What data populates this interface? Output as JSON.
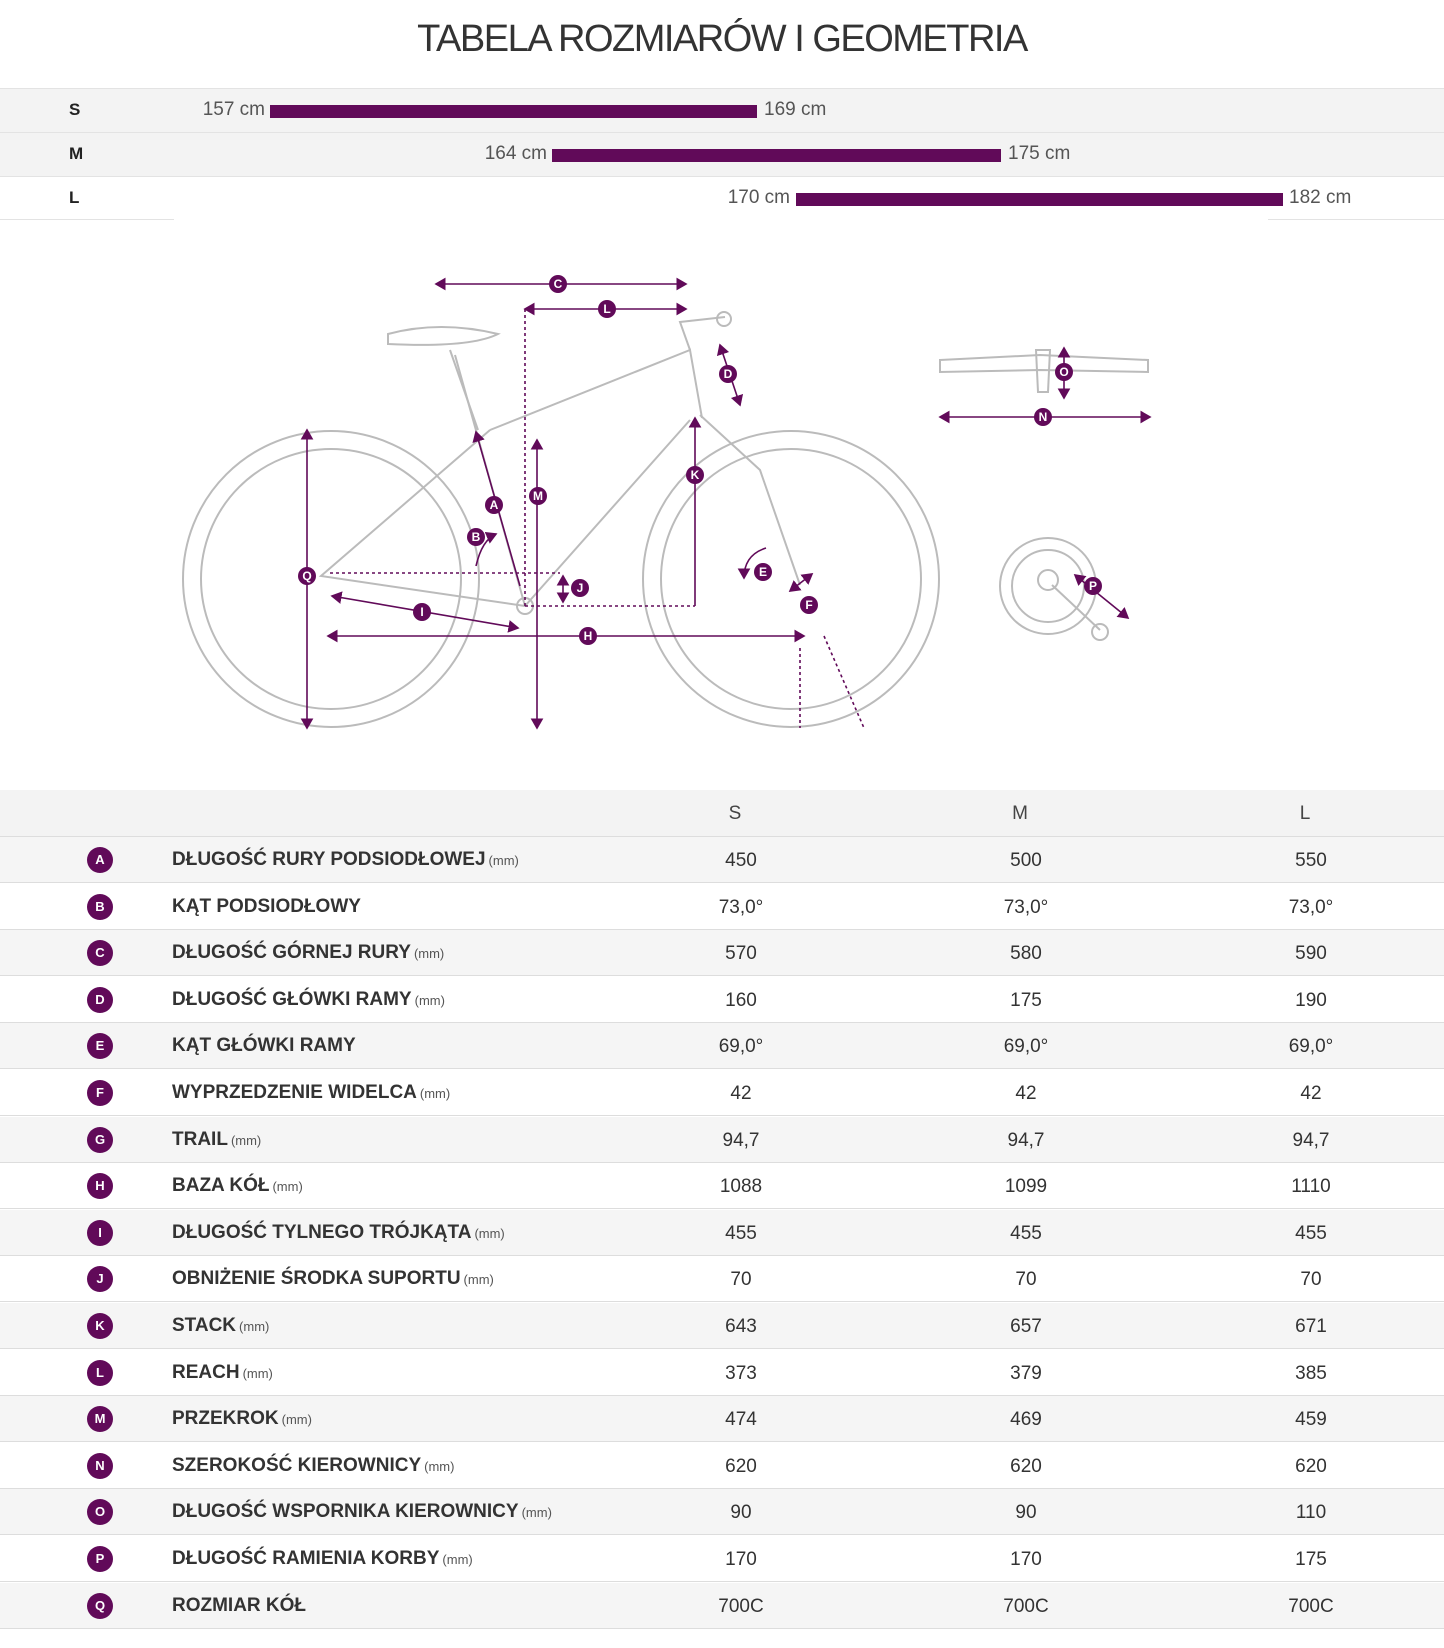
{
  "page": {
    "title": "TABELA ROZMIARÓW I GEOMETRIA"
  },
  "colors": {
    "accent": "#610a59",
    "row_alt": "#f3f3f3"
  },
  "size_chart": {
    "rows": [
      {
        "size": "S",
        "min_label": "157 cm",
        "max_label": "169 cm",
        "min_cm": 157,
        "max_cm": 169
      },
      {
        "size": "M",
        "min_label": "164 cm",
        "max_label": "175 cm",
        "min_cm": 164,
        "max_cm": 175
      },
      {
        "size": "L",
        "min_label": "170 cm",
        "max_label": "182 cm",
        "min_cm": 170,
        "max_cm": 182
      }
    ]
  },
  "diagram": {
    "labels": [
      "A",
      "B",
      "C",
      "D",
      "E",
      "F",
      "H",
      "I",
      "J",
      "K",
      "L",
      "M",
      "N",
      "O",
      "P",
      "Q"
    ]
  },
  "geometry": {
    "columns": [
      "S",
      "M",
      "L"
    ],
    "rows": [
      {
        "letter": "A",
        "name": "DŁUGOŚĆ RURY PODSIODŁOWEJ",
        "unit": "(mm)",
        "values": [
          "450",
          "500",
          "550"
        ]
      },
      {
        "letter": "B",
        "name": "KĄT PODSIODŁOWY",
        "unit": "",
        "values": [
          "73,0°",
          "73,0°",
          "73,0°"
        ]
      },
      {
        "letter": "C",
        "name": "DŁUGOŚĆ GÓRNEJ RURY",
        "unit": "(mm)",
        "values": [
          "570",
          "580",
          "590"
        ]
      },
      {
        "letter": "D",
        "name": "DŁUGOŚĆ GŁÓWKI RAMY",
        "unit": "(mm)",
        "values": [
          "160",
          "175",
          "190"
        ]
      },
      {
        "letter": "E",
        "name": "KĄT GŁÓWKI RAMY",
        "unit": "",
        "values": [
          "69,0°",
          "69,0°",
          "69,0°"
        ]
      },
      {
        "letter": "F",
        "name": "WYPRZEDZENIE WIDELCA",
        "unit": "(mm)",
        "values": [
          "42",
          "42",
          "42"
        ]
      },
      {
        "letter": "G",
        "name": "TRAIL",
        "unit": "(mm)",
        "values": [
          "94,7",
          "94,7",
          "94,7"
        ]
      },
      {
        "letter": "H",
        "name": "BAZA KÓŁ",
        "unit": "(mm)",
        "values": [
          "1088",
          "1099",
          "1110"
        ]
      },
      {
        "letter": "I",
        "name": "DŁUGOŚĆ TYLNEGO TRÓJKĄTA",
        "unit": "(mm)",
        "values": [
          "455",
          "455",
          "455"
        ]
      },
      {
        "letter": "J",
        "name": "OBNIŻENIE ŚRODKA SUPORTU",
        "unit": "(mm)",
        "values": [
          "70",
          "70",
          "70"
        ]
      },
      {
        "letter": "K",
        "name": "STACK",
        "unit": "(mm)",
        "values": [
          "643",
          "657",
          "671"
        ]
      },
      {
        "letter": "L",
        "name": "REACH",
        "unit": "(mm)",
        "values": [
          "373",
          "379",
          "385"
        ]
      },
      {
        "letter": "M",
        "name": "PRZEKROK",
        "unit": "(mm)",
        "values": [
          "474",
          "469",
          "459"
        ]
      },
      {
        "letter": "N",
        "name": "SZEROKOŚĆ KIEROWNICY",
        "unit": "(mm)",
        "values": [
          "620",
          "620",
          "620"
        ]
      },
      {
        "letter": "O",
        "name": "DŁUGOŚĆ WSPORNIKA KIEROWNICY",
        "unit": "(mm)",
        "values": [
          "90",
          "90",
          "110"
        ]
      },
      {
        "letter": "P",
        "name": "DŁUGOŚĆ RAMIENIA KORBY",
        "unit": "(mm)",
        "values": [
          "170",
          "170",
          "175"
        ]
      },
      {
        "letter": "Q",
        "name": "ROZMIAR KÓŁ",
        "unit": "",
        "values": [
          "700C",
          "700C",
          "700C"
        ]
      }
    ]
  }
}
